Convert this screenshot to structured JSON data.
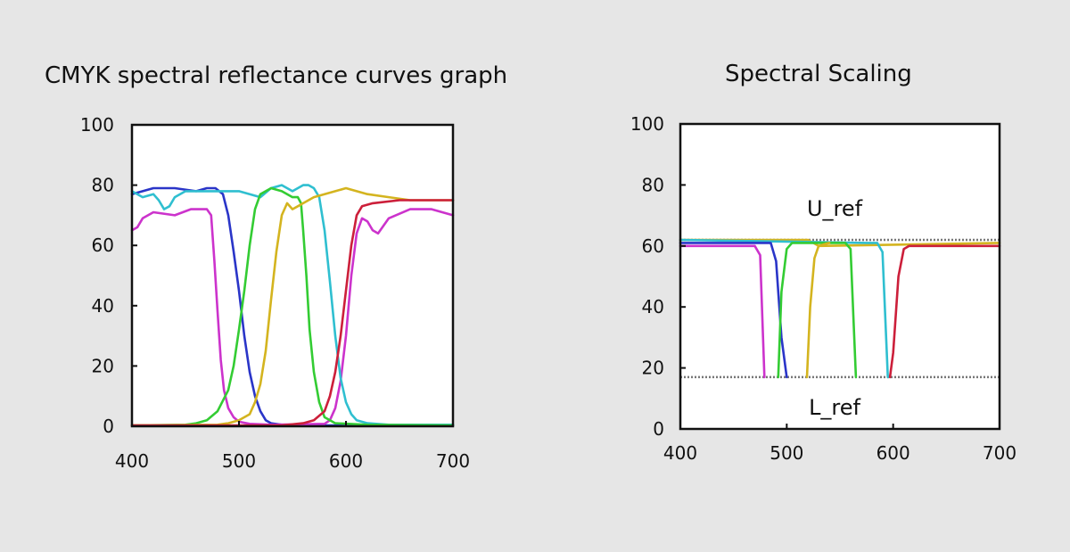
{
  "chart_data": [
    {
      "type": "line",
      "title": "CMYK spectral reflectance curves graph",
      "xlabel": "",
      "ylabel": "",
      "xlim": [
        400,
        700
      ],
      "ylim": [
        0,
        100
      ],
      "x_ticks": [
        400,
        500,
        600,
        700
      ],
      "y_ticks": [
        0,
        20,
        40,
        60,
        80,
        100
      ],
      "grid": false,
      "series": [
        {
          "color": "#2a35c8",
          "points": [
            [
              400,
              77
            ],
            [
              420,
              79
            ],
            [
              440,
              79
            ],
            [
              460,
              78
            ],
            [
              470,
              79
            ],
            [
              478,
              79
            ],
            [
              485,
              77
            ],
            [
              490,
              70
            ],
            [
              495,
              58
            ],
            [
              500,
              45
            ],
            [
              505,
              30
            ],
            [
              510,
              18
            ],
            [
              515,
              10
            ],
            [
              520,
              5
            ],
            [
              525,
              2
            ],
            [
              530,
              1
            ],
            [
              540,
              0.5
            ],
            [
              560,
              0.3
            ],
            [
              700,
              0.3
            ]
          ]
        },
        {
          "color": "#cc33cc",
          "points": [
            [
              400,
              65
            ],
            [
              405,
              66
            ],
            [
              410,
              69
            ],
            [
              420,
              71
            ],
            [
              440,
              70
            ],
            [
              455,
              72
            ],
            [
              470,
              72
            ],
            [
              474,
              70
            ],
            [
              477,
              55
            ],
            [
              480,
              38
            ],
            [
              483,
              22
            ],
            [
              486,
              12
            ],
            [
              490,
              6
            ],
            [
              495,
              3
            ],
            [
              500,
              1.5
            ],
            [
              510,
              0.8
            ],
            [
              530,
              0.5
            ],
            [
              580,
              0.8
            ],
            [
              585,
              2
            ],
            [
              590,
              6
            ],
            [
              595,
              15
            ],
            [
              600,
              30
            ],
            [
              605,
              50
            ],
            [
              610,
              64
            ],
            [
              615,
              69
            ],
            [
              620,
              68
            ],
            [
              625,
              65
            ],
            [
              630,
              64
            ],
            [
              640,
              69
            ],
            [
              660,
              72
            ],
            [
              680,
              72
            ],
            [
              690,
              71
            ],
            [
              700,
              70
            ]
          ]
        },
        {
          "color": "#2fbfd0",
          "points": [
            [
              400,
              78
            ],
            [
              410,
              76
            ],
            [
              420,
              77
            ],
            [
              425,
              75
            ],
            [
              430,
              72
            ],
            [
              435,
              73
            ],
            [
              440,
              76
            ],
            [
              450,
              78
            ],
            [
              470,
              78
            ],
            [
              480,
              78
            ],
            [
              500,
              78
            ],
            [
              510,
              77
            ],
            [
              520,
              76
            ],
            [
              530,
              79
            ],
            [
              540,
              80
            ],
            [
              550,
              78
            ],
            [
              560,
              80
            ],
            [
              565,
              80
            ],
            [
              570,
              79
            ],
            [
              575,
              76
            ],
            [
              580,
              65
            ],
            [
              585,
              48
            ],
            [
              590,
              30
            ],
            [
              595,
              16
            ],
            [
              600,
              8
            ],
            [
              605,
              4
            ],
            [
              610,
              2
            ],
            [
              620,
              1
            ],
            [
              640,
              0.5
            ],
            [
              700,
              0.5
            ]
          ]
        },
        {
          "color": "#33cc33",
          "points": [
            [
              400,
              0.3
            ],
            [
              450,
              0.5
            ],
            [
              460,
              1
            ],
            [
              470,
              2
            ],
            [
              480,
              5
            ],
            [
              490,
              12
            ],
            [
              495,
              20
            ],
            [
              500,
              32
            ],
            [
              505,
              45
            ],
            [
              510,
              60
            ],
            [
              515,
              72
            ],
            [
              520,
              77
            ],
            [
              530,
              79
            ],
            [
              540,
              78
            ],
            [
              550,
              76
            ],
            [
              555,
              76
            ],
            [
              558,
              74
            ],
            [
              560,
              65
            ],
            [
              563,
              50
            ],
            [
              566,
              32
            ],
            [
              570,
              18
            ],
            [
              575,
              8
            ],
            [
              580,
              3
            ],
            [
              590,
              1
            ],
            [
              620,
              0.5
            ],
            [
              700,
              0.3
            ]
          ]
        },
        {
          "color": "#d4b41f",
          "points": [
            [
              400,
              0.3
            ],
            [
              480,
              0.5
            ],
            [
              490,
              1
            ],
            [
              500,
              2
            ],
            [
              510,
              4
            ],
            [
              515,
              8
            ],
            [
              520,
              14
            ],
            [
              525,
              25
            ],
            [
              530,
              42
            ],
            [
              535,
              58
            ],
            [
              540,
              70
            ],
            [
              545,
              74
            ],
            [
              550,
              72
            ],
            [
              555,
              73
            ],
            [
              560,
              74
            ],
            [
              570,
              76
            ],
            [
              580,
              77
            ],
            [
              590,
              78
            ],
            [
              600,
              79
            ],
            [
              610,
              78
            ],
            [
              620,
              77
            ],
            [
              640,
              76
            ],
            [
              660,
              75
            ],
            [
              680,
              75
            ],
            [
              700,
              75
            ]
          ]
        },
        {
          "color": "#cc1f3a",
          "points": [
            [
              400,
              0.3
            ],
            [
              540,
              0.3
            ],
            [
              560,
              1
            ],
            [
              570,
              2
            ],
            [
              580,
              5
            ],
            [
              585,
              10
            ],
            [
              590,
              18
            ],
            [
              595,
              30
            ],
            [
              600,
              45
            ],
            [
              605,
              60
            ],
            [
              610,
              70
            ],
            [
              615,
              73
            ],
            [
              625,
              74
            ],
            [
              650,
              75
            ],
            [
              700,
              75
            ]
          ]
        }
      ]
    },
    {
      "type": "line",
      "title": "Spectral Scaling",
      "xlabel": "",
      "ylabel": "",
      "xlim": [
        400,
        700
      ],
      "ylim": [
        0,
        100
      ],
      "x_ticks": [
        400,
        500,
        600,
        700
      ],
      "y_ticks": [
        0,
        20,
        40,
        60,
        80,
        100
      ],
      "grid": false,
      "reference_lines": [
        {
          "label": "U_ref",
          "y": 62
        },
        {
          "label": "L_ref",
          "y": 17
        }
      ],
      "series": [
        {
          "color": "#d4b41f",
          "points": [
            [
              400,
              62
            ],
            [
              520,
              62
            ],
            [
              525,
              61
            ],
            [
              530,
              60
            ],
            [
              700,
              61
            ]
          ]
        },
        {
          "color": "#2fbfd0",
          "points": [
            [
              400,
              62
            ],
            [
              575,
              61
            ],
            [
              585,
              61
            ],
            [
              590,
              58
            ],
            [
              595,
              17
            ]
          ]
        },
        {
          "color": "#2a35c8",
          "points": [
            [
              400,
              61
            ],
            [
              485,
              61
            ],
            [
              490,
              55
            ],
            [
              495,
              30
            ],
            [
              500,
              17
            ]
          ]
        },
        {
          "color": "#cc33cc",
          "points": [
            [
              400,
              60
            ],
            [
              470,
              60
            ],
            [
              475,
              57
            ],
            [
              479,
              17
            ]
          ]
        },
        {
          "color": "#33cc33",
          "points": [
            [
              492,
              17
            ],
            [
              495,
              45
            ],
            [
              500,
              59
            ],
            [
              505,
              61
            ],
            [
              555,
              61
            ],
            [
              560,
              59
            ],
            [
              565,
              17
            ]
          ]
        },
        {
          "color": "#d4b41f",
          "points": [
            [
              519,
              17
            ],
            [
              522,
              40
            ],
            [
              526,
              56
            ],
            [
              530,
              60
            ],
            [
              540,
              61
            ]
          ]
        },
        {
          "color": "#cc1f3a",
          "points": [
            [
              597,
              17
            ],
            [
              600,
              25
            ],
            [
              605,
              50
            ],
            [
              610,
              59
            ],
            [
              615,
              60
            ],
            [
              700,
              60
            ]
          ]
        }
      ]
    }
  ]
}
